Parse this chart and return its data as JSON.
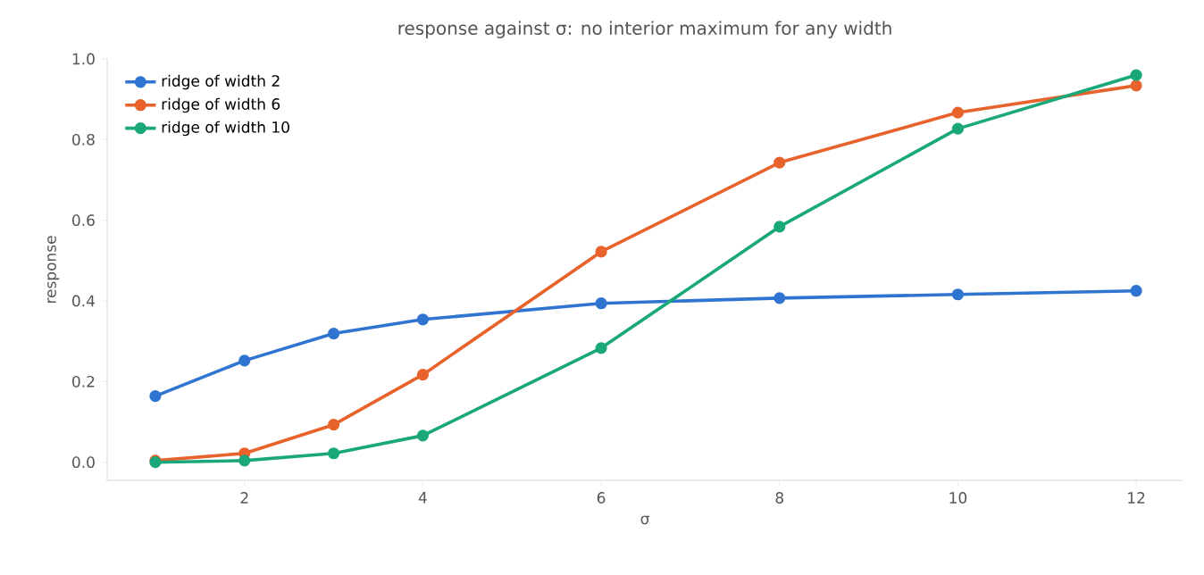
{
  "chart_data": {
    "type": "line",
    "title": "response against σ: no interior maximum for any width",
    "xlabel": "σ",
    "ylabel": "response",
    "x": [
      1,
      2,
      3,
      4,
      6,
      8,
      10,
      12
    ],
    "series": [
      {
        "name": "ridge of width 2",
        "color": "#2f74d0",
        "values": [
          0.164,
          0.252,
          0.319,
          0.354,
          0.394,
          0.407,
          0.416,
          0.425
        ]
      },
      {
        "name": "ridge of width 6",
        "color": "#e8632b",
        "values": [
          0.004,
          0.022,
          0.093,
          0.217,
          0.522,
          0.743,
          0.867,
          0.934
        ]
      },
      {
        "name": "ridge of width 10",
        "color": "#1aa87a",
        "values": [
          0.0,
          0.004,
          0.022,
          0.066,
          0.283,
          0.584,
          0.827,
          0.96
        ]
      }
    ],
    "xlim": [
      0.46,
      12.52
    ],
    "ylim": [
      -0.045,
      1.0
    ],
    "xticks": [
      2,
      4,
      6,
      8,
      10,
      12
    ],
    "yticks": [
      {
        "value": 0,
        "label": "0.0"
      },
      {
        "value": 0.2,
        "label": "0.2"
      },
      {
        "value": 0.4,
        "label": "0.4"
      },
      {
        "value": 0.6,
        "label": "0.6"
      },
      {
        "value": 0.8,
        "label": "0.8"
      },
      {
        "value": 1.0,
        "label": "1.0"
      }
    ],
    "legend": "top left",
    "marker": "circle",
    "line_style": "solid",
    "grid": false
  }
}
